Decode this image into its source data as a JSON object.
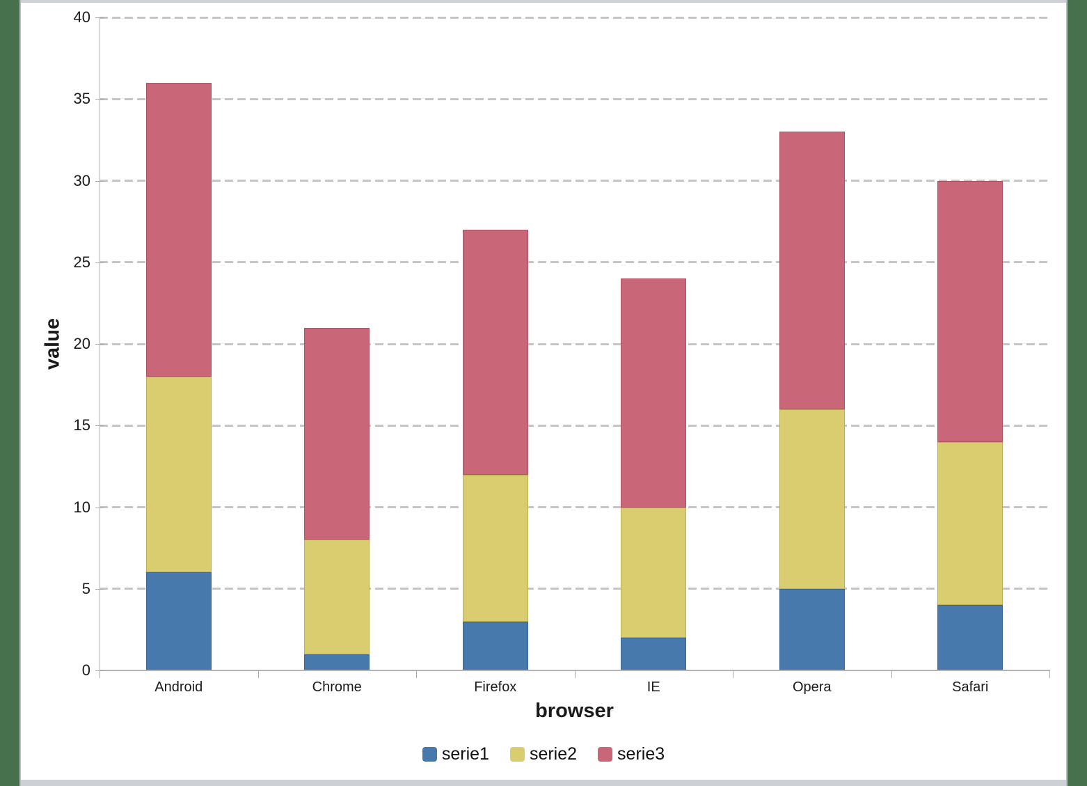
{
  "frame": {
    "side_band_color": "#47714C",
    "strip_color": "#CDD1D5",
    "panel_bg": "#FFFFFF",
    "gridline_color": "#C5C5C5",
    "axis_color": "#B3B3B3"
  },
  "chart_data": {
    "type": "bar",
    "stacked": true,
    "title": "",
    "xlabel": "browser",
    "ylabel": "value",
    "categories": [
      "Android",
      "Chrome",
      "Firefox",
      "IE",
      "Opera",
      "Safari"
    ],
    "series": [
      {
        "name": "serie1",
        "color": "#4779AC",
        "stroke": "#3A6896",
        "values": [
          6,
          1,
          3,
          2,
          5,
          4
        ]
      },
      {
        "name": "serie2",
        "color": "#D9CD70",
        "stroke": "#BCAE54",
        "values": [
          12,
          7,
          9,
          8,
          11,
          10
        ]
      },
      {
        "name": "serie3",
        "color": "#C96677",
        "stroke": "#AE5262",
        "values": [
          18,
          13,
          15,
          14,
          17,
          16
        ]
      }
    ],
    "stack_totals": [
      36,
      21,
      27,
      24,
      33,
      30
    ],
    "ylim": [
      0,
      40
    ],
    "ytick_step": 5,
    "ytick_labels": [
      "0",
      "5",
      "10",
      "15",
      "20",
      "25",
      "30",
      "35",
      "40"
    ],
    "grid": "horizontal dashed, every 5 units",
    "legend_position": "bottom center"
  }
}
